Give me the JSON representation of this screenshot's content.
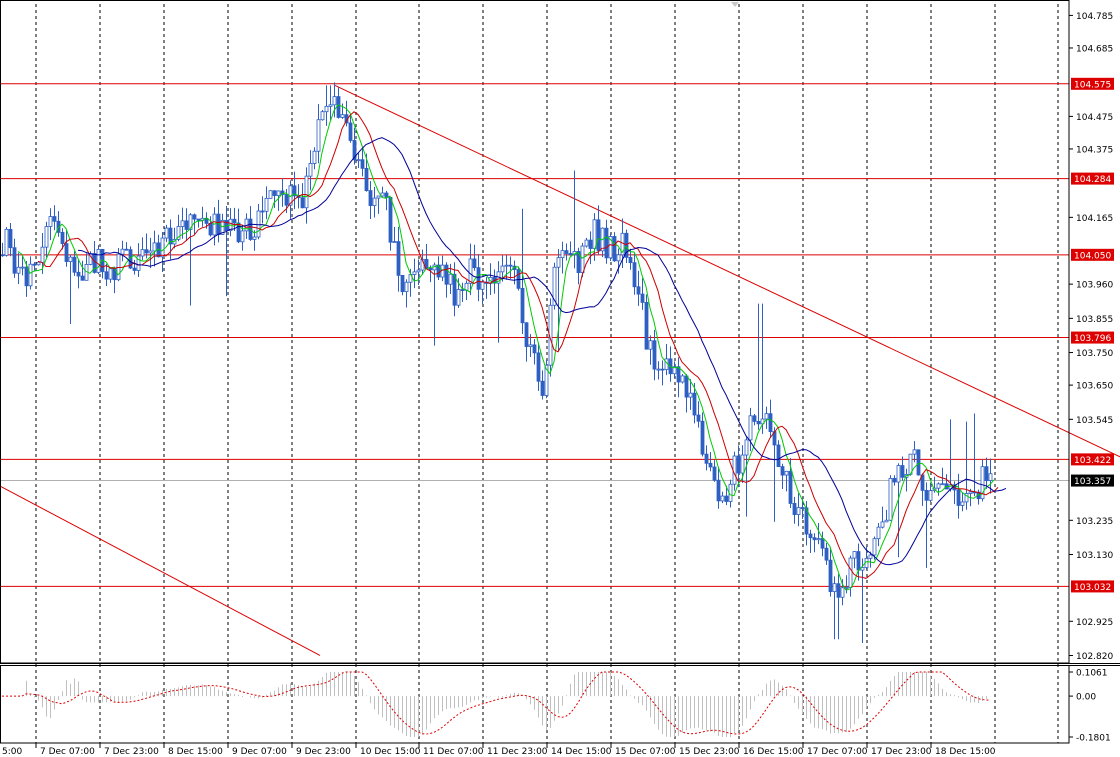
{
  "chart_data": {
    "type": "candlestick",
    "price_scale": {
      "ticks": [
        "104.785",
        "104.685",
        "104.475",
        "104.375",
        "104.165",
        "103.960",
        "103.855",
        "103.750",
        "103.650",
        "103.545",
        "103.235",
        "103.130",
        "102.925",
        "102.820"
      ],
      "ylim": [
        102.8,
        104.82
      ]
    },
    "x_axis": {
      "labels": [
        "5:00",
        "7 Dec 07:00",
        "7 Dec 23:00",
        "8 Dec 15:00",
        "9 Dec 07:00",
        "9 Dec 23:00",
        "10 Dec 15:00",
        "11 Dec 07:00",
        "11 Dec 23:00",
        "14 Dec 15:00",
        "15 Dec 07:00",
        "15 Dec 23:00",
        "16 Dec 15:00",
        "17 Dec 07:00",
        "17 Dec 23:00",
        "18 Dec 15:00"
      ]
    },
    "levels": [
      {
        "value": 104.575,
        "label": "104.575"
      },
      {
        "value": 104.284,
        "label": "104.284"
      },
      {
        "value": 104.05,
        "label": "104.050"
      },
      {
        "value": 103.796,
        "label": "103.796"
      },
      {
        "value": 103.422,
        "label": "103.422"
      },
      {
        "value": 103.032,
        "label": "103.032"
      }
    ],
    "current_price": {
      "value": 103.357,
      "label": "103.357"
    },
    "trendlines": [
      {
        "from": {
          "x": 335,
          "y": 104.57
        },
        "to": {
          "x": 1120,
          "y": 103.43
        }
      },
      {
        "from": {
          "x": 0,
          "y": 103.34
        },
        "to": {
          "x": 320,
          "y": 102.82
        }
      }
    ],
    "path": [
      [
        0,
        104.05
      ],
      [
        8,
        104.1
      ],
      [
        16,
        104.0
      ],
      [
        24,
        103.98
      ],
      [
        32,
        104.03
      ],
      [
        40,
        104.05
      ],
      [
        48,
        104.2
      ],
      [
        56,
        104.12
      ],
      [
        64,
        104.05
      ],
      [
        72,
        104.02
      ],
      [
        80,
        103.98
      ],
      [
        88,
        104.0
      ],
      [
        96,
        104.04
      ],
      [
        104,
        104.02
      ],
      [
        112,
        104.0
      ],
      [
        120,
        104.04
      ],
      [
        128,
        104.05
      ],
      [
        136,
        104.02
      ],
      [
        144,
        104.06
      ],
      [
        152,
        104.05
      ],
      [
        160,
        104.1
      ],
      [
        168,
        104.13
      ],
      [
        176,
        104.12
      ],
      [
        184,
        104.14
      ],
      [
        192,
        104.13
      ],
      [
        200,
        104.15
      ],
      [
        208,
        104.13
      ],
      [
        216,
        104.14
      ],
      [
        224,
        104.15
      ],
      [
        232,
        104.16
      ],
      [
        240,
        104.1
      ],
      [
        248,
        104.12
      ],
      [
        256,
        104.15
      ],
      [
        264,
        104.18
      ],
      [
        272,
        104.24
      ],
      [
        280,
        104.26
      ],
      [
        288,
        104.22
      ],
      [
        296,
        104.24
      ],
      [
        304,
        104.22
      ],
      [
        312,
        104.4
      ],
      [
        320,
        104.45
      ],
      [
        328,
        104.48
      ],
      [
        336,
        104.5
      ],
      [
        344,
        104.45
      ],
      [
        352,
        104.35
      ],
      [
        360,
        104.28
      ],
      [
        368,
        104.25
      ],
      [
        376,
        104.2
      ],
      [
        384,
        104.22
      ],
      [
        392,
        104.1
      ],
      [
        400,
        103.96
      ],
      [
        408,
        104.0
      ],
      [
        416,
        104.02
      ],
      [
        424,
        104.05
      ],
      [
        432,
        104.04
      ],
      [
        440,
        104.02
      ],
      [
        448,
        103.98
      ],
      [
        456,
        103.9
      ],
      [
        464,
        104.0
      ],
      [
        472,
        104.02
      ],
      [
        480,
        103.95
      ],
      [
        488,
        104.02
      ],
      [
        496,
        104.0
      ],
      [
        504,
        103.98
      ],
      [
        512,
        104.02
      ],
      [
        520,
        103.9
      ],
      [
        528,
        103.78
      ],
      [
        536,
        103.7
      ],
      [
        544,
        103.62
      ],
      [
        552,
        103.95
      ],
      [
        560,
        104.05
      ],
      [
        568,
        104.06
      ],
      [
        576,
        104.02
      ],
      [
        584,
        104.08
      ],
      [
        592,
        104.12
      ],
      [
        600,
        104.1
      ],
      [
        608,
        104.08
      ],
      [
        616,
        104.06
      ],
      [
        624,
        104.08
      ],
      [
        632,
        104.0
      ],
      [
        640,
        103.9
      ],
      [
        648,
        103.75
      ],
      [
        656,
        103.72
      ],
      [
        664,
        103.7
      ],
      [
        672,
        103.68
      ],
      [
        680,
        103.66
      ],
      [
        688,
        103.65
      ],
      [
        696,
        103.56
      ],
      [
        704,
        103.45
      ],
      [
        712,
        103.38
      ],
      [
        720,
        103.3
      ],
      [
        728,
        103.35
      ],
      [
        736,
        103.4
      ],
      [
        744,
        103.5
      ],
      [
        752,
        103.52
      ],
      [
        760,
        103.5
      ],
      [
        768,
        103.55
      ],
      [
        776,
        103.42
      ],
      [
        784,
        103.36
      ],
      [
        792,
        103.3
      ],
      [
        800,
        103.25
      ],
      [
        808,
        103.2
      ],
      [
        816,
        103.15
      ],
      [
        824,
        103.1
      ],
      [
        832,
        103.0
      ],
      [
        840,
        103.0
      ],
      [
        848,
        103.08
      ],
      [
        856,
        103.1
      ],
      [
        864,
        103.1
      ],
      [
        872,
        103.12
      ],
      [
        880,
        103.2
      ],
      [
        888,
        103.3
      ],
      [
        896,
        103.38
      ],
      [
        904,
        103.4
      ],
      [
        912,
        103.45
      ],
      [
        920,
        103.35
      ],
      [
        928,
        103.3
      ],
      [
        936,
        103.35
      ],
      [
        944,
        103.32
      ],
      [
        952,
        103.3
      ],
      [
        960,
        103.3
      ],
      [
        968,
        103.32
      ],
      [
        976,
        103.34
      ],
      [
        984,
        103.36
      ],
      [
        992,
        103.36
      ]
    ],
    "indicators": [
      {
        "color": "#00cc00",
        "period": 4,
        "start": 8
      },
      {
        "color": "#cc0000",
        "period": 8,
        "start": 16
      },
      {
        "color": "#000099",
        "period": 16,
        "start": 32
      }
    ],
    "oscillator": {
      "ticks": [
        "0.1061",
        "0.00",
        "-0.1801"
      ],
      "range": [
        -0.1801,
        0.1061
      ]
    }
  }
}
